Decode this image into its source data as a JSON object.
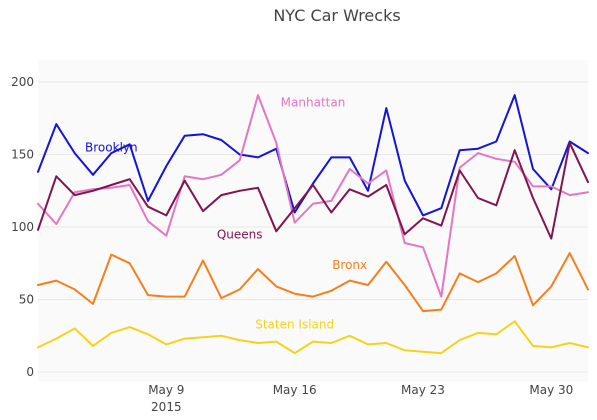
{
  "chart_data": {
    "type": "line",
    "title": "NYC Car Wrecks",
    "xlabel": "",
    "ylabel": "",
    "x_start": "2015-05-02",
    "x_end": "2015-06-01",
    "x": [
      "2015-05-02",
      "2015-05-03",
      "2015-05-04",
      "2015-05-05",
      "2015-05-06",
      "2015-05-07",
      "2015-05-08",
      "2015-05-09",
      "2015-05-10",
      "2015-05-11",
      "2015-05-12",
      "2015-05-13",
      "2015-05-14",
      "2015-05-15",
      "2015-05-16",
      "2015-05-17",
      "2015-05-18",
      "2015-05-19",
      "2015-05-20",
      "2015-05-21",
      "2015-05-22",
      "2015-05-23",
      "2015-05-24",
      "2015-05-25",
      "2015-05-26",
      "2015-05-27",
      "2015-05-28",
      "2015-05-29",
      "2015-05-30",
      "2015-05-31",
      "2015-06-01"
    ],
    "ylim": [
      -8,
      200
    ],
    "y_ticks": [
      0,
      50,
      100,
      150,
      200
    ],
    "x_ticks": [
      {
        "date": "2015-05-09",
        "label": "May 9",
        "sublabel": "2015"
      },
      {
        "date": "2015-05-16",
        "label": "May 16",
        "sublabel": ""
      },
      {
        "date": "2015-05-23",
        "label": "May 23",
        "sublabel": ""
      },
      {
        "date": "2015-05-30",
        "label": "May 30",
        "sublabel": ""
      }
    ],
    "grid": true,
    "legend": "none",
    "series": [
      {
        "name": "Brooklyn",
        "color": "#1414d8",
        "label_at": {
          "date": "2015-05-06",
          "y": 152
        },
        "values": [
          138,
          171,
          151,
          136,
          151,
          157,
          118,
          142,
          163,
          164,
          160,
          150,
          148,
          154,
          110,
          130,
          148,
          148,
          125,
          182,
          132,
          108,
          113,
          153,
          154,
          159,
          191,
          140,
          126,
          159,
          151
        ]
      },
      {
        "name": "Manhattan",
        "color": "#e377c2",
        "label_at": {
          "date": "2015-05-17",
          "y": 183
        },
        "values": [
          116,
          102,
          124,
          126,
          127,
          129,
          104,
          94,
          135,
          133,
          136,
          146,
          191,
          158,
          103,
          116,
          118,
          140,
          130,
          139,
          89,
          86,
          52,
          141,
          151,
          147,
          145,
          128,
          128,
          122,
          124
        ]
      },
      {
        "name": "Queens",
        "color": "#7f1450",
        "label_at": {
          "date": "2015-05-13",
          "y": 92
        },
        "values": [
          98,
          135,
          122,
          125,
          129,
          133,
          114,
          108,
          132,
          111,
          122,
          125,
          127,
          97,
          113,
          129,
          110,
          126,
          121,
          129,
          95,
          106,
          101,
          139,
          120,
          115,
          153,
          120,
          92,
          158,
          131
        ]
      },
      {
        "name": "Bronx",
        "color": "#f57f1d",
        "label_at": {
          "date": "2015-05-19",
          "y": 71
        },
        "values": [
          60,
          63,
          57,
          47,
          81,
          75,
          53,
          52,
          52,
          77,
          51,
          57,
          71,
          59,
          54,
          52,
          56,
          63,
          60,
          76,
          60,
          42,
          43,
          68,
          62,
          68,
          80,
          46,
          59,
          82,
          57
        ]
      },
      {
        "name": "Staten Island",
        "color": "#f6d31b",
        "label_at": {
          "date": "2015-05-16",
          "y": 30
        },
        "values": [
          17,
          23,
          30,
          18,
          27,
          31,
          26,
          19,
          23,
          24,
          25,
          22,
          20,
          21,
          13,
          21,
          20,
          25,
          19,
          20,
          15,
          14,
          13,
          22,
          27,
          26,
          35,
          18,
          17,
          20,
          17
        ]
      }
    ]
  }
}
